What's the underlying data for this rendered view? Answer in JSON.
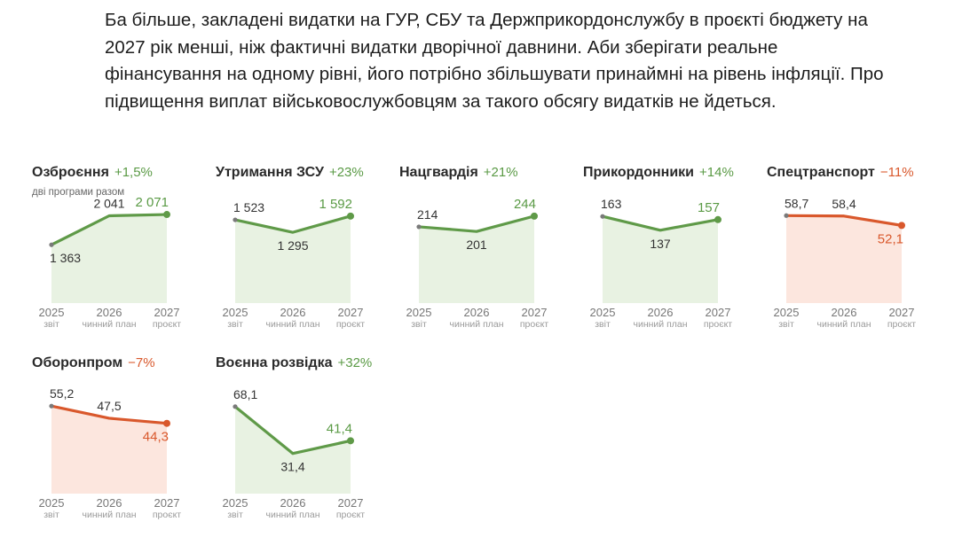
{
  "intro": "Ба більше, закладені видатки на ГУР, СБУ та Держприкордонслужбу в проєкті бюджету на 2027 рік менші, ніж фактичні видатки дворічної давнини. Аби зберігати реальне фінансування на одному рівні, його потрібно збільшувати принаймні на рівень інфляції. Про підвищення виплат військовослужбовцям за такого обсягу видатків не йдеться.",
  "x_axis": {
    "years": [
      "2025",
      "2026",
      "2027"
    ],
    "subs": [
      "звіт",
      "чинний план",
      "проєкт"
    ]
  },
  "colors": {
    "up_line": "#5f9a48",
    "up_fill": "#e8f2e2",
    "down_line": "#d9582c",
    "down_fill": "#fce6de",
    "first_dot": "#7a7a7a"
  },
  "chart_data": [
    {
      "type": "area",
      "title": "Озброєння",
      "change": "+1,5%",
      "direction": "up",
      "subtitle": "дві програми разом",
      "x": [
        "2025",
        "2026",
        "2027"
      ],
      "values": [
        1363,
        2041,
        2071
      ],
      "labels": [
        "1 363",
        "2 041",
        "2 071"
      ],
      "ylim": [
        0,
        2300
      ]
    },
    {
      "type": "area",
      "title": "Утримання ЗСУ",
      "change": "+23%",
      "direction": "up",
      "subtitle": "",
      "x": [
        "2025",
        "2026",
        "2027"
      ],
      "values": [
        1523,
        1295,
        1592
      ],
      "labels": [
        "1 523",
        "1 295",
        "1 592"
      ],
      "ylim": [
        0,
        1800
      ]
    },
    {
      "type": "area",
      "title": "Нацгвардія",
      "change": "+21%",
      "direction": "up",
      "subtitle": "",
      "x": [
        "2025",
        "2026",
        "2027"
      ],
      "values": [
        214,
        201,
        244
      ],
      "labels": [
        "214",
        "201",
        "244"
      ],
      "ylim": [
        0,
        276
      ]
    },
    {
      "type": "area",
      "title": "Прикордонники",
      "change": "+14%",
      "direction": "up",
      "subtitle": "",
      "x": [
        "2025",
        "2026",
        "2027"
      ],
      "values": [
        163,
        137,
        157
      ],
      "labels": [
        "163",
        "137",
        "157"
      ],
      "ylim": [
        0,
        185
      ]
    },
    {
      "type": "area",
      "title": "Спецтранспорт",
      "change": "−11%",
      "direction": "down",
      "subtitle": "",
      "x": [
        "2025",
        "2026",
        "2027"
      ],
      "values": [
        58.7,
        58.4,
        52.1
      ],
      "labels": [
        "58,7",
        "58,4",
        "52,1"
      ],
      "ylim": [
        0,
        66
      ]
    },
    {
      "type": "area",
      "title": "Оборонпром",
      "change": "−7%",
      "direction": "down",
      "subtitle": "",
      "x": [
        "2025",
        "2026",
        "2027"
      ],
      "values": [
        55.2,
        47.5,
        44.3
      ],
      "labels": [
        "55,2",
        "47,5",
        "44,3"
      ],
      "ylim": [
        0,
        62
      ]
    },
    {
      "type": "area",
      "title": "Воєнна розвідка",
      "change": "+32%",
      "direction": "up",
      "subtitle": "",
      "x": [
        "2025",
        "2026",
        "2027"
      ],
      "values": [
        68.1,
        31.4,
        41.4
      ],
      "labels": [
        "68,1",
        "31,4",
        "41,4"
      ],
      "ylim": [
        0,
        77
      ]
    }
  ]
}
